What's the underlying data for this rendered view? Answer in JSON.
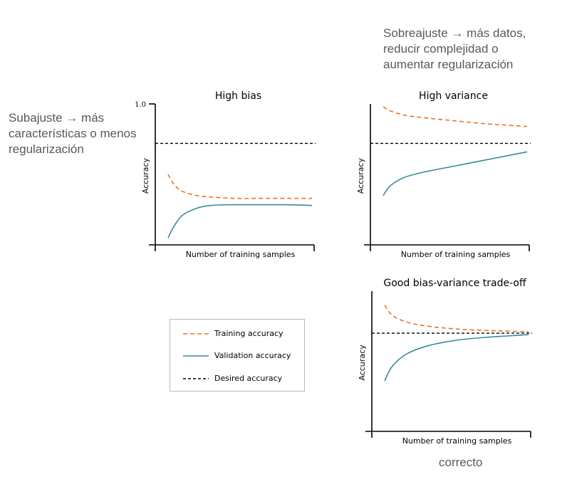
{
  "notes": {
    "underfit": [
      "Subajuste → más",
      "características o menos",
      "regularización"
    ],
    "overfit": [
      "Sobreajuste → más datos,",
      "reducir complejidad o",
      "aumentar regularización"
    ],
    "correct": "correcto"
  },
  "colors": {
    "training": "#e8742a",
    "validation": "#3a8a9a",
    "desired": "#000000"
  },
  "legend": {
    "training": "Training accuracy",
    "validation": "Validation accuracy",
    "desired": "Desired accuracy"
  },
  "chart_data": [
    {
      "type": "line",
      "title": "High bias",
      "xlabel": "Number of training samples",
      "ylabel": "Accuracy",
      "y_tick_labels": [
        "1.0"
      ],
      "ylim": [
        0,
        1
      ],
      "desired_accuracy": 0.72,
      "series": [
        {
          "name": "Training accuracy",
          "style": "dashed",
          "x": [
            0,
            0.04,
            0.1,
            0.2,
            0.3,
            0.45,
            0.6,
            0.8,
            1.0
          ],
          "y": [
            0.5,
            0.43,
            0.38,
            0.35,
            0.34,
            0.33,
            0.33,
            0.33,
            0.33
          ]
        },
        {
          "name": "Validation accuracy",
          "style": "solid",
          "x": [
            0,
            0.04,
            0.1,
            0.2,
            0.3,
            0.45,
            0.6,
            0.8,
            1.0
          ],
          "y": [
            0.05,
            0.13,
            0.21,
            0.26,
            0.28,
            0.285,
            0.285,
            0.285,
            0.28
          ]
        }
      ]
    },
    {
      "type": "line",
      "title": "High variance",
      "xlabel": "Number of training samples",
      "ylabel": "Accuracy",
      "ylim": [
        0,
        1
      ],
      "desired_accuracy": 0.72,
      "series": [
        {
          "name": "Training accuracy",
          "style": "dashed",
          "x": [
            0,
            0.05,
            0.15,
            0.3,
            0.5,
            0.7,
            0.85,
            1.0
          ],
          "y": [
            0.98,
            0.95,
            0.92,
            0.9,
            0.88,
            0.86,
            0.85,
            0.84
          ]
        },
        {
          "name": "Validation accuracy",
          "style": "solid",
          "x": [
            0,
            0.05,
            0.15,
            0.3,
            0.5,
            0.7,
            0.85,
            1.0
          ],
          "y": [
            0.35,
            0.42,
            0.48,
            0.52,
            0.56,
            0.6,
            0.63,
            0.66
          ]
        }
      ]
    },
    {
      "type": "line",
      "title": "Good bias-variance trade-off",
      "xlabel": "Number of training samples",
      "ylabel": "Accuracy",
      "ylim": [
        0,
        1
      ],
      "desired_accuracy": 0.7,
      "series": [
        {
          "name": "Training accuracy",
          "style": "dashed",
          "x": [
            0,
            0.05,
            0.15,
            0.3,
            0.5,
            0.7,
            0.85,
            1.0
          ],
          "y": [
            0.9,
            0.83,
            0.78,
            0.75,
            0.73,
            0.72,
            0.715,
            0.71
          ]
        },
        {
          "name": "Validation accuracy",
          "style": "solid",
          "x": [
            0,
            0.05,
            0.15,
            0.3,
            0.5,
            0.7,
            0.85,
            1.0
          ],
          "y": [
            0.36,
            0.46,
            0.55,
            0.61,
            0.65,
            0.67,
            0.68,
            0.69
          ]
        }
      ]
    }
  ]
}
